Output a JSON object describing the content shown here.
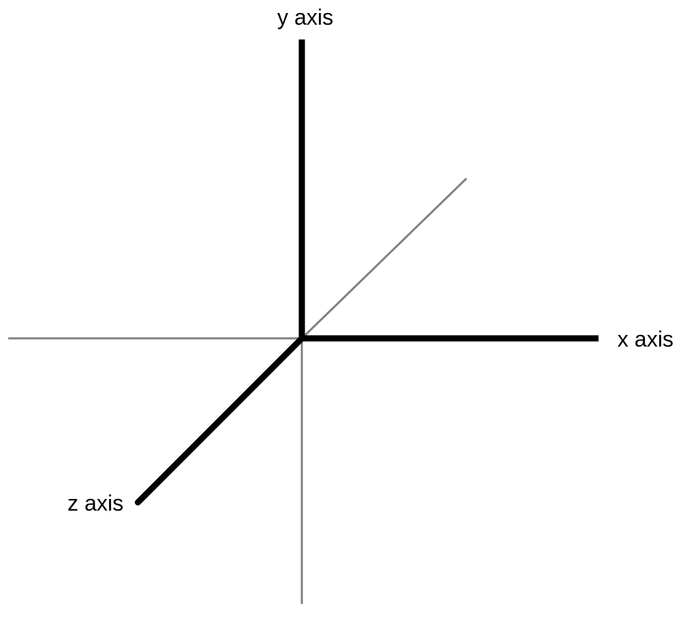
{
  "diagram": {
    "labels": {
      "y_axis": "y axis",
      "x_axis": "x axis",
      "z_axis": "z axis"
    },
    "colors": {
      "positive_axis": "#000000",
      "negative_axis": "#808080",
      "background": "#ffffff"
    }
  }
}
